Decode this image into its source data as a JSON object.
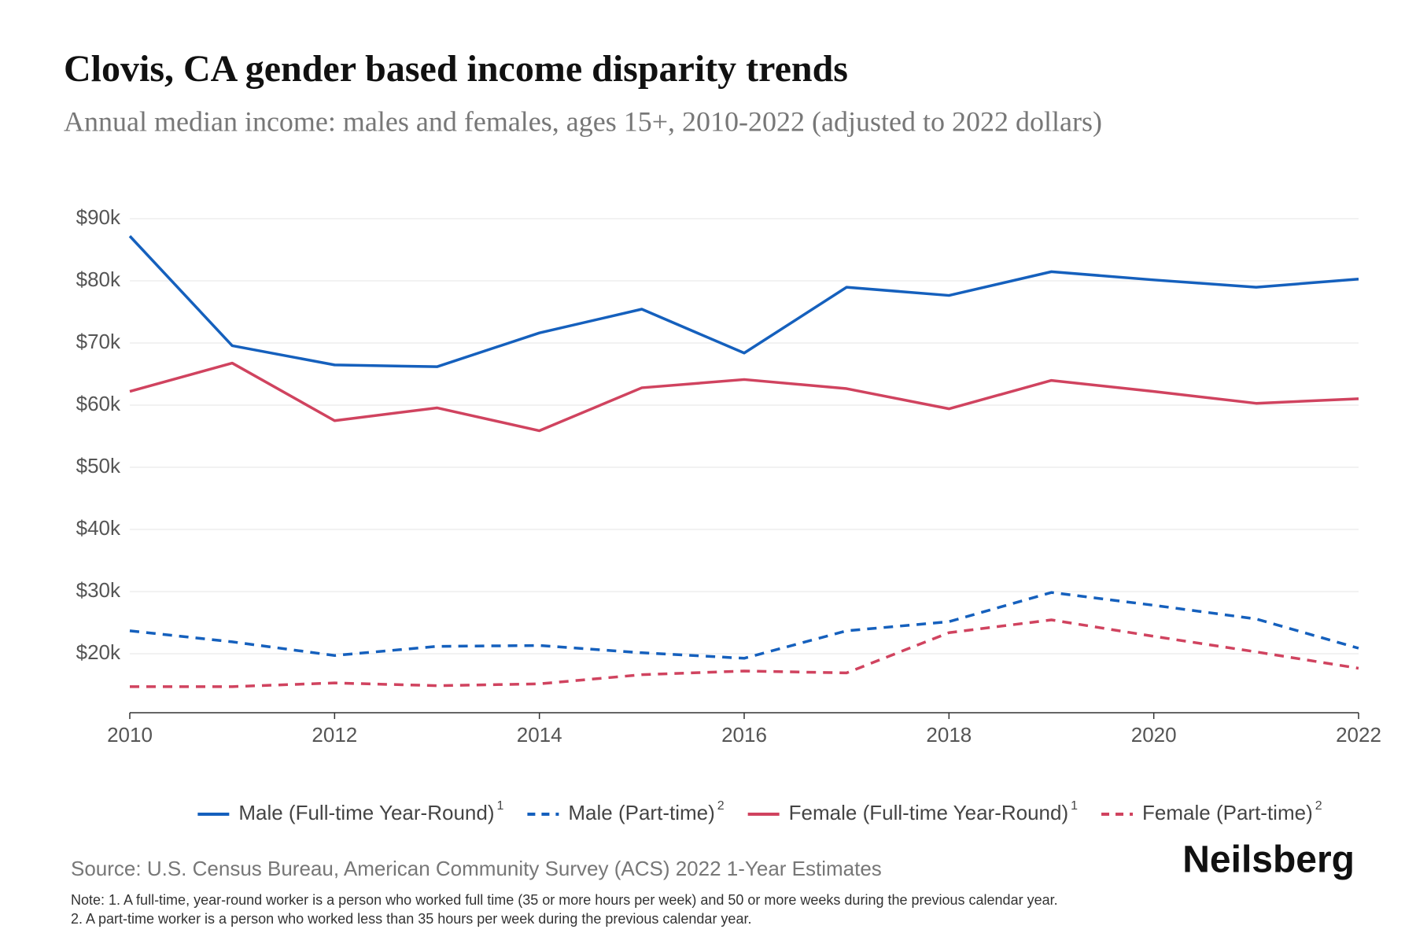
{
  "chart_data": {
    "type": "line",
    "title": "Clovis, CA gender based income disparity trends",
    "subtitle": "Annual median income: males and females, ages 15+, 2010-2022 (adjusted to 2022 dollars)",
    "x": [
      2010,
      2011,
      2012,
      2013,
      2014,
      2015,
      2016,
      2017,
      2018,
      2019,
      2020,
      2021,
      2022
    ],
    "xlim": [
      2010,
      2022
    ],
    "xticks": [
      2010,
      2012,
      2014,
      2016,
      2018,
      2020,
      2022
    ],
    "ylim": [
      10500,
      90000
    ],
    "yticks": [
      {
        "value": 20000,
        "label": "$20k"
      },
      {
        "value": 30000,
        "label": "$30k"
      },
      {
        "value": 40000,
        "label": "$40k"
      },
      {
        "value": 50000,
        "label": "$50k"
      },
      {
        "value": 60000,
        "label": "$60k"
      },
      {
        "value": 70000,
        "label": "$70k"
      },
      {
        "value": 80000,
        "label": "$80k"
      },
      {
        "value": 90000,
        "label": "$90k"
      }
    ],
    "grid": true,
    "legend": "bottom",
    "series": [
      {
        "name": "Male (Full-time Year-Round)",
        "footnote": "1",
        "color": "#1560bd",
        "dashed": false,
        "values": [
          87200,
          69560,
          66470,
          66180,
          71620,
          75440,
          68380,
          78970,
          77650,
          81470,
          80150,
          78970,
          80290
        ]
      },
      {
        "name": "Male (Part-time)",
        "footnote": "2",
        "color": "#1560bd",
        "dashed": true,
        "values": [
          23680,
          21910,
          19710,
          21180,
          21320,
          20150,
          19260,
          23680,
          25150,
          29850,
          27790,
          25590,
          20880
        ]
      },
      {
        "name": "Female (Full-time Year-Round)",
        "footnote": "1",
        "color": "#d0435f",
        "dashed": false,
        "values": [
          62200,
          66760,
          57500,
          59560,
          55880,
          62790,
          64120,
          62650,
          59410,
          63970,
          62200,
          60290,
          61030
        ]
      },
      {
        "name": "Female (Part-time)",
        "footnote": "2",
        "color": "#d0435f",
        "dashed": true,
        "values": [
          14700,
          14700,
          15290,
          14850,
          15150,
          16620,
          17210,
          16910,
          23380,
          25440,
          22790,
          20290,
          17650
        ]
      }
    ],
    "source": "Source: U.S. Census Bureau, American Community Survey (ACS) 2022 1-Year Estimates",
    "notes": [
      "Note: 1. A full-time, year-round worker is a person who worked full time (35 or more hours per week) and 50 or more weeks during the previous calendar year.",
      "2. A part-time worker is a person who worked less than 35 hours per week during the previous calendar year."
    ],
    "brand": "Neilsberg"
  }
}
